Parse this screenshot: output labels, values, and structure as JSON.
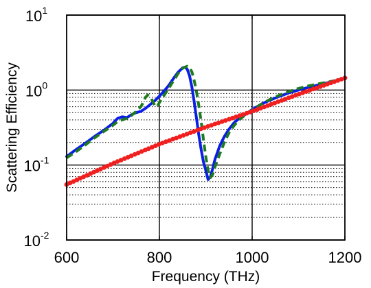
{
  "chart_data": {
    "type": "line",
    "title": "",
    "xlabel": "Frequency (THz)",
    "ylabel": "Scattering Efficiency",
    "xlim": [
      600,
      1200
    ],
    "ylim": [
      0.01,
      10
    ],
    "yscale": "log",
    "grid": "major and minor on y, major on x",
    "x_ticks": [
      {
        "value": 600,
        "label": "600"
      },
      {
        "value": 800,
        "label": "800"
      },
      {
        "value": 1000,
        "label": "1000"
      },
      {
        "value": 1200,
        "label": "1200"
      }
    ],
    "y_ticks": [
      {
        "value": 0.01,
        "base": "10",
        "exp": "-2"
      },
      {
        "value": 0.1,
        "base": "10",
        "exp": "-1"
      },
      {
        "value": 1,
        "base": "10",
        "exp": "0"
      },
      {
        "value": 10,
        "base": "10",
        "exp": "1"
      }
    ],
    "series": [
      {
        "color": "#0a1ee6",
        "style": "solid",
        "x": [
          600,
          620,
          640,
          660,
          680,
          700,
          710,
          720,
          730,
          740,
          750,
          760,
          770,
          780,
          790,
          800,
          810,
          820,
          830,
          840,
          850,
          855,
          860,
          865,
          870,
          875,
          880,
          885,
          890,
          895,
          900,
          905,
          910,
          915,
          920,
          930,
          940,
          950,
          960,
          970,
          980,
          1000,
          1020,
          1040,
          1060,
          1080,
          1100,
          1120,
          1140,
          1160,
          1180,
          1200
        ],
        "y": [
          0.13,
          0.16,
          0.195,
          0.24,
          0.29,
          0.36,
          0.42,
          0.44,
          0.43,
          0.47,
          0.5,
          0.52,
          0.57,
          0.64,
          0.72,
          0.83,
          0.97,
          1.15,
          1.42,
          1.72,
          1.98,
          2.02,
          1.9,
          1.55,
          1.1,
          0.7,
          0.42,
          0.25,
          0.16,
          0.11,
          0.085,
          0.064,
          0.07,
          0.09,
          0.12,
          0.18,
          0.24,
          0.3,
          0.36,
          0.41,
          0.45,
          0.55,
          0.65,
          0.74,
          0.83,
          0.92,
          1.0,
          1.08,
          1.16,
          1.24,
          1.33,
          1.42
        ]
      },
      {
        "color": "#1e7a1e",
        "style": "dashed",
        "x": [
          600,
          620,
          640,
          660,
          680,
          700,
          710,
          720,
          730,
          740,
          750,
          760,
          765,
          770,
          775,
          780,
          785,
          790,
          795,
          800,
          810,
          820,
          830,
          840,
          850,
          860,
          865,
          870,
          875,
          880,
          885,
          890,
          895,
          900,
          905,
          910,
          915,
          920,
          930,
          940,
          950,
          960,
          970,
          980,
          1000,
          1020,
          1040,
          1060,
          1080,
          1100,
          1120,
          1140,
          1160,
          1180,
          1200
        ],
        "y": [
          0.125,
          0.15,
          0.185,
          0.23,
          0.28,
          0.34,
          0.38,
          0.4,
          0.42,
          0.46,
          0.52,
          0.6,
          0.68,
          0.8,
          0.86,
          0.82,
          0.72,
          0.62,
          0.6,
          0.68,
          0.85,
          1.05,
          1.32,
          1.65,
          1.95,
          2.08,
          2.0,
          1.75,
          1.35,
          0.95,
          0.62,
          0.38,
          0.22,
          0.13,
          0.085,
          0.068,
          0.075,
          0.095,
          0.14,
          0.2,
          0.27,
          0.33,
          0.39,
          0.44,
          0.54,
          0.65,
          0.76,
          0.86,
          0.96,
          1.05,
          1.13,
          1.2,
          1.27,
          1.34,
          1.42
        ]
      },
      {
        "color": "#f02020",
        "style": "dotted-markers",
        "x": [
          600,
          700,
          800,
          900,
          1000,
          1100,
          1200
        ],
        "y": [
          0.055,
          0.105,
          0.19,
          0.32,
          0.52,
          0.88,
          1.45
        ]
      }
    ]
  }
}
